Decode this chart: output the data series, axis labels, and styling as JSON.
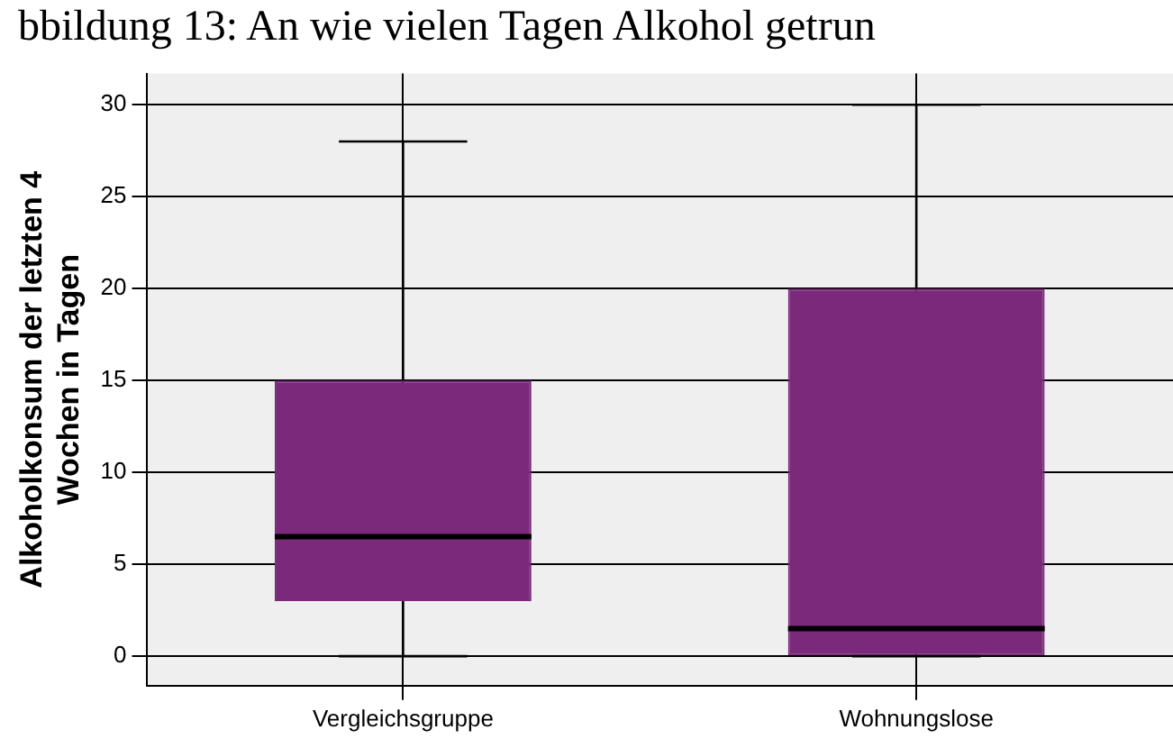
{
  "chart_data": {
    "type": "box",
    "title": "bbildung 13: An wie vielen Tagen Alkohol getrun",
    "ylabel": "Alkoholkonsum der letzten 4 Wochen in Tagen",
    "categories": [
      "Vergleichsgruppe",
      "Wohnungslose"
    ],
    "color": "#7b2a7b",
    "boxes": [
      {
        "low": 0,
        "q1": 3,
        "median": 6.5,
        "q3": 15,
        "high": 28
      },
      {
        "low": 0,
        "q1": 0,
        "median": 1.5,
        "q3": 20,
        "high": 30
      }
    ],
    "ylim": [
      -1.6,
      31.7
    ],
    "yticks": [
      0,
      5,
      10,
      15,
      20,
      25,
      30
    ],
    "grid": true
  }
}
